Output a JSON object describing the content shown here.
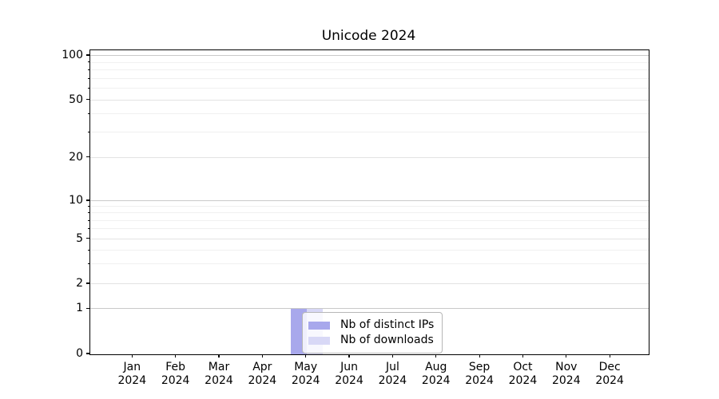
{
  "title": "Unicode 2024",
  "chart_data": {
    "type": "bar",
    "title": "Unicode 2024",
    "xlabel": "",
    "ylabel": "",
    "categories": [
      "Jan 2024",
      "Feb 2024",
      "Mar 2024",
      "Apr 2024",
      "May 2024",
      "Jun 2024",
      "Jul 2024",
      "Aug 2024",
      "Sep 2024",
      "Oct 2024",
      "Nov 2024",
      "Dec 2024"
    ],
    "series": [
      {
        "name": "Nb of distinct IPs",
        "color": "#a8a8ec",
        "values": [
          0,
          0,
          0,
          0,
          1,
          0,
          0,
          0,
          0,
          0,
          0,
          0
        ]
      },
      {
        "name": "Nb of downloads",
        "color": "#d8d8f6",
        "values": [
          0,
          0,
          0,
          0,
          1,
          0,
          0,
          0,
          0,
          0,
          0,
          0
        ]
      }
    ],
    "yscale": "symlog",
    "y_ticks": [
      0,
      1,
      2,
      5,
      10,
      20,
      50,
      100
    ],
    "y_tick_labels": [
      "0",
      "1",
      "2",
      "5",
      "10",
      "20",
      "50",
      "100"
    ],
    "ylim": [
      0,
      110
    ],
    "grid": "on",
    "legend_position": "lower center inside plot"
  },
  "legend": {
    "items": [
      {
        "label": "Nb of distinct IPs",
        "color": "#a8a8ec"
      },
      {
        "label": "Nb of downloads",
        "color": "#d8d8f6"
      }
    ]
  },
  "colors": {
    "grid_major": "#c9c9c9",
    "grid_mid": "#e3e3e3",
    "grid_minor": "#f0f0f0",
    "spine": "#000000",
    "background": "#ffffff"
  }
}
